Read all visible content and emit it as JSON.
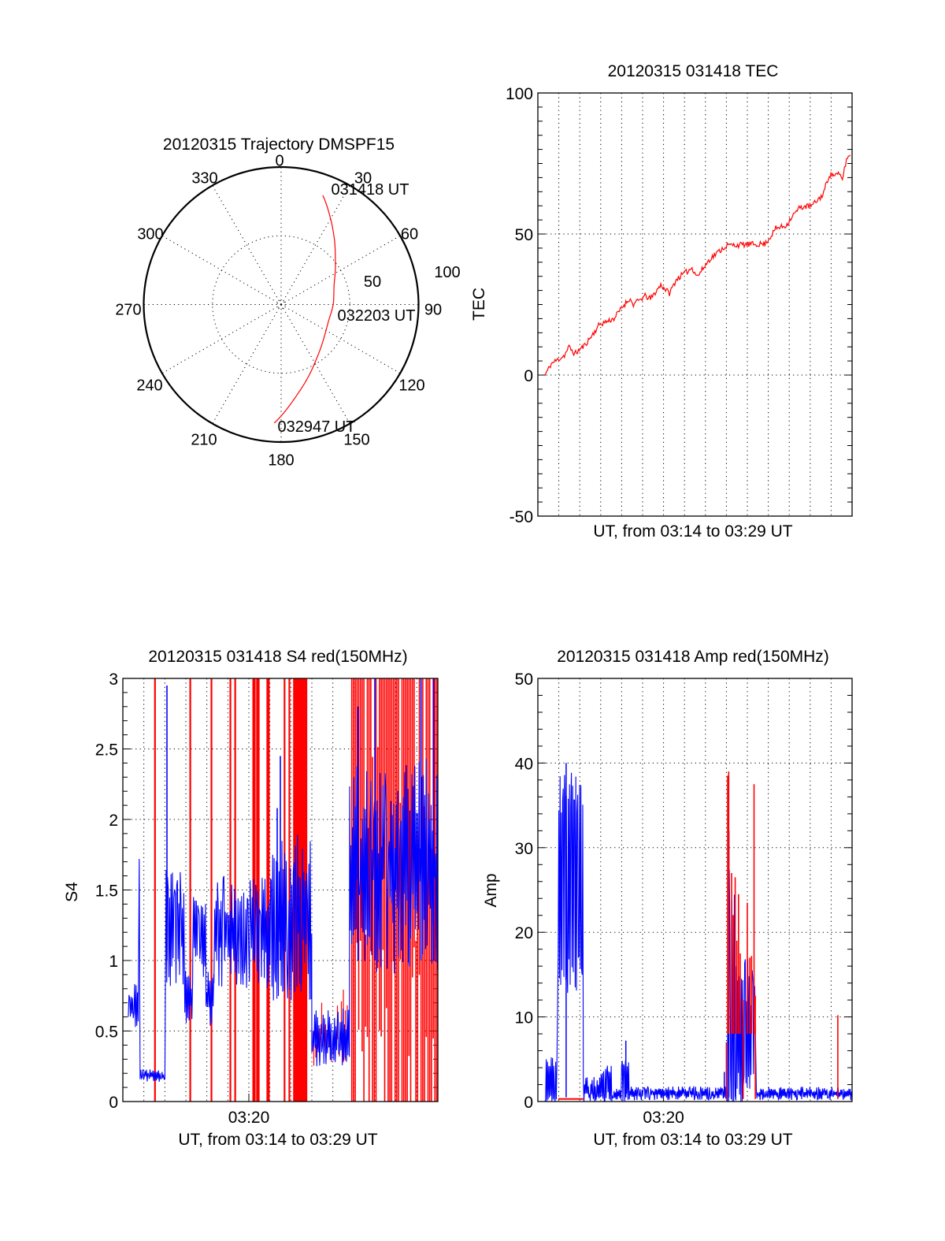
{
  "colors": {
    "red_channel": "#ff0000",
    "blue_channel": "#0000ff",
    "axes": "#000000"
  },
  "chart_data": [
    {
      "id": "trajectory",
      "type": "polar",
      "title": "20120315 Trajectory DMSPF15",
      "angle_tick_labels": [
        "0",
        "30",
        "60",
        "90",
        "120",
        "150",
        "180",
        "210",
        "240",
        "270",
        "300",
        "330"
      ],
      "angle_ticks_deg": [
        0,
        30,
        60,
        90,
        120,
        150,
        180,
        210,
        240,
        270,
        300,
        330
      ],
      "radial_tick_labels": [
        "50",
        "100"
      ],
      "radial_ticks": [
        50,
        100
      ],
      "rlim": [
        0,
        100
      ],
      "grid": true,
      "series": [
        {
          "name": "DMSPF15 trajectory",
          "color": "#ff0000",
          "points": [
            {
              "az": 20.9,
              "r": 85.0
            },
            {
              "az": 30.0,
              "r": 72.0
            },
            {
              "az": 40.0,
              "r": 60.5
            },
            {
              "az": 52.2,
              "r": 50.0
            },
            {
              "az": 70.0,
              "r": 41.0
            },
            {
              "az": 90.4,
              "r": 37.8
            },
            {
              "az": 108.0,
              "r": 36.5
            },
            {
              "az": 123.0,
              "r": 38.3
            },
            {
              "az": 137.0,
              "r": 42.5
            },
            {
              "az": 149.7,
              "r": 48.8
            },
            {
              "az": 162.0,
              "r": 58.5
            },
            {
              "az": 172.4,
              "r": 69.7
            },
            {
              "az": 183.4,
              "r": 86.4
            }
          ]
        }
      ],
      "annotations": [
        {
          "text": "031418 UT",
          "az": 20.9,
          "r": 85.0
        },
        {
          "text": "032203 UT",
          "az": 90.4,
          "r": 37.8
        },
        {
          "text": "032947 UT",
          "az": 183.4,
          "r": 86.4
        }
      ]
    },
    {
      "id": "tec",
      "type": "line",
      "title": "20120315 031418 TEC",
      "xlabel": "UT, from 03:14 to 03:29 UT",
      "ylabel": "TEC",
      "xlim": [
        0,
        15
      ],
      "ylim": [
        -50,
        100
      ],
      "x_units": "minutes after 03:14 UT",
      "y_tick_labels": [
        "100",
        "50",
        "0",
        "-50"
      ],
      "y_ticks": [
        100,
        50,
        0,
        -50
      ],
      "y_minor_step": 5,
      "x_grid_step": 1,
      "x_tick_labels": [],
      "grid": true,
      "series": [
        {
          "name": "TEC",
          "color": "#ff0000",
          "x": [
            0.34,
            0.64,
            1.27,
            1.49,
            1.76,
            2.24,
            2.58,
            2.95,
            3.63,
            4.07,
            4.37,
            4.56,
            5.12,
            5.38,
            5.87,
            6.28,
            6.62,
            7.36,
            7.62,
            8.19,
            8.75,
            9.04,
            10.84,
            11.1,
            11.36,
            11.85,
            12.11,
            12.52,
            13.08,
            13.61,
            13.91,
            14.39,
            14.54,
            14.73,
            14.92
          ],
          "y": [
            0,
            4,
            7,
            10,
            7.5,
            10.6,
            14,
            18,
            20,
            24.5,
            27,
            25,
            28,
            27,
            32,
            29,
            34,
            38,
            35,
            41,
            44.5,
            46,
            46.5,
            49,
            52,
            53,
            56,
            59.5,
            60,
            64,
            71,
            71,
            69.5,
            76.5,
            78
          ],
          "jitter": 1.0
        }
      ]
    },
    {
      "id": "s4",
      "type": "line",
      "title": "20120315 031418 S4 red(150MHz)",
      "xlabel": "UT, from 03:14 to 03:29 UT",
      "ylabel": "S4",
      "xlim": [
        0,
        15
      ],
      "ylim": [
        0,
        3
      ],
      "x_units": "minutes after 03:14 UT",
      "x_tick_labels": [
        "03:20"
      ],
      "x_ticks": [
        6
      ],
      "y_tick_labels": [
        "3",
        "2.5",
        "2",
        "1.5",
        "1",
        "0.5",
        "0"
      ],
      "y_ticks": [
        3,
        2.5,
        2,
        1.5,
        1,
        0.5,
        0
      ],
      "y_minor_step": 0.1,
      "x_grid_step": 1,
      "grid": true,
      "series": [
        {
          "name": "S4 blue",
          "color": "#0000ff",
          "segments": [
            {
              "t0": 0.26,
              "t1": 0.76,
              "lo": 0.58,
              "hi": 0.78,
              "jitter": 0.06
            },
            {
              "t0": 0.78,
              "t1": 0.8,
              "lo": 0.5,
              "hi": 1.72,
              "jitter": 0.0
            },
            {
              "t0": 0.82,
              "t1": 2.02,
              "lo": 0.16,
              "hi": 0.21,
              "jitter": 0.02
            },
            {
              "t0": 2.06,
              "t1": 2.95,
              "lo": 0.95,
              "hi": 1.5,
              "jitter": 0.15
            },
            {
              "t0": 2.95,
              "t1": 3.33,
              "lo": 0.62,
              "hi": 0.85,
              "jitter": 0.08
            },
            {
              "t0": 3.33,
              "t1": 3.96,
              "lo": 1.0,
              "hi": 1.4,
              "jitter": 0.12
            },
            {
              "t0": 3.96,
              "t1": 4.34,
              "lo": 0.6,
              "hi": 0.85,
              "jitter": 0.08
            },
            {
              "t0": 4.34,
              "t1": 7.07,
              "lo": 0.95,
              "hi": 1.45,
              "jitter": 0.15
            },
            {
              "t0": 7.07,
              "t1": 9.0,
              "lo": 0.95,
              "hi": 1.65,
              "jitter": 0.25
            },
            {
              "t0": 9.0,
              "t1": 10.8,
              "lo": 0.32,
              "hi": 0.58,
              "jitter": 0.08
            },
            {
              "t0": 10.8,
              "t1": 15.0,
              "lo": 1.25,
              "hi": 2.1,
              "jitter": 0.35
            }
          ],
          "peaks": [
            {
              "t": 2.1,
              "y": 2.95
            },
            {
              "t": 7.5,
              "y": 2.45
            },
            {
              "t": 7.35,
              "y": 2.08
            },
            {
              "t": 11.2,
              "y": 2.8
            },
            {
              "t": 12.0,
              "y": 3.0
            },
            {
              "t": 14.2,
              "y": 3.0
            },
            {
              "t": 14.8,
              "y": 3.0
            }
          ]
        },
        {
          "name": "S4 red",
          "color": "#ff0000",
          "spikes_full_scale_t": [
            1.53,
            3.21,
            4.22,
            5.12,
            5.35,
            6.21,
            6.28,
            6.39,
            6.47,
            6.88,
            6.95,
            7.7,
            7.93,
            8.15,
            8.2,
            8.26,
            8.32,
            8.38,
            8.44,
            8.5,
            8.56,
            8.62,
            8.68,
            8.74
          ],
          "dense_region": {
            "t0": 10.9,
            "t1": 15.0,
            "lo": 0.0,
            "hi": 3.0
          },
          "follow_segment": {
            "t0": 9.0,
            "t1": 10.8,
            "lo": 0.25,
            "hi": 0.8
          }
        }
      ]
    },
    {
      "id": "amp",
      "type": "line",
      "title": "20120315 031418 Amp red(150MHz)",
      "xlabel": "UT, from 03:14 to 03:29 UT",
      "ylabel": "Amp",
      "xlim": [
        0,
        15
      ],
      "ylim": [
        0,
        50
      ],
      "x_units": "minutes after 03:14 UT",
      "x_tick_labels": [
        "03:20"
      ],
      "x_ticks": [
        6
      ],
      "y_tick_labels": [
        "50",
        "40",
        "30",
        "20",
        "10",
        "0"
      ],
      "y_ticks": [
        50,
        40,
        30,
        20,
        10,
        0
      ],
      "y_minor_step": 2,
      "x_grid_step": 1,
      "grid": true,
      "series": [
        {
          "name": "Amp blue",
          "color": "#0000ff",
          "segments": [
            {
              "t0": 0.34,
              "t1": 0.93,
              "lo": 0.0,
              "hi": 4.8,
              "jitter": 0.9
            },
            {
              "t0": 0.97,
              "t1": 2.17,
              "lo": 15.0,
              "hi": 36.5,
              "jitter": 2.5
            },
            {
              "t0": 2.17,
              "t1": 2.99,
              "lo": 0.4,
              "hi": 2.3,
              "jitter": 0.6
            },
            {
              "t0": 2.99,
              "t1": 3.55,
              "lo": 0.5,
              "hi": 3.8,
              "jitter": 0.9
            },
            {
              "t0": 3.55,
              "t1": 4.0,
              "lo": 0.5,
              "hi": 1.3,
              "jitter": 0.3
            },
            {
              "t0": 4.0,
              "t1": 4.37,
              "lo": 0.5,
              "hi": 4.4,
              "jitter": 0.5
            },
            {
              "t0": 4.37,
              "t1": 9.05,
              "lo": 0.5,
              "hi": 1.5,
              "jitter": 0.35
            },
            {
              "t0": 9.05,
              "t1": 9.42,
              "lo": 1.0,
              "hi": 24.0,
              "jitter": 4.0
            },
            {
              "t0": 9.42,
              "t1": 10.38,
              "lo": 0.5,
              "hi": 14.0,
              "jitter": 3.0
            },
            {
              "t0": 10.43,
              "t1": 15.0,
              "lo": 0.5,
              "hi": 1.4,
              "jitter": 0.35
            }
          ],
          "peaks": [
            {
              "t": 1.35,
              "y": 40.0
            },
            {
              "t": 4.2,
              "y": 7.2
            },
            {
              "t": 8.9,
              "y": 3.5
            },
            {
              "t": 9.12,
              "y": 32.0
            }
          ]
        },
        {
          "name": "Amp red",
          "color": "#ff0000",
          "flat_segment": {
            "t0": 0.97,
            "t1": 2.17,
            "y": 0.3
          },
          "spikes": [
            {
              "t": 9.0,
              "y": 7.0
            },
            {
              "t": 9.06,
              "y": 38.5
            },
            {
              "t": 9.11,
              "y": 39.0
            },
            {
              "t": 9.25,
              "y": 27.0
            },
            {
              "t": 9.33,
              "y": 22.0
            },
            {
              "t": 9.42,
              "y": 26.5
            },
            {
              "t": 9.5,
              "y": 19.0
            },
            {
              "t": 9.58,
              "y": 24.5
            },
            {
              "t": 9.66,
              "y": 17.5
            },
            {
              "t": 9.8,
              "y": 12.0
            },
            {
              "t": 10.0,
              "y": 23.5
            },
            {
              "t": 10.12,
              "y": 17.0
            },
            {
              "t": 10.2,
              "y": 17.2
            },
            {
              "t": 10.32,
              "y": 37.5
            },
            {
              "t": 10.38,
              "y": 12.5
            },
            {
              "t": 14.32,
              "y": 10.2
            }
          ]
        }
      ]
    }
  ]
}
